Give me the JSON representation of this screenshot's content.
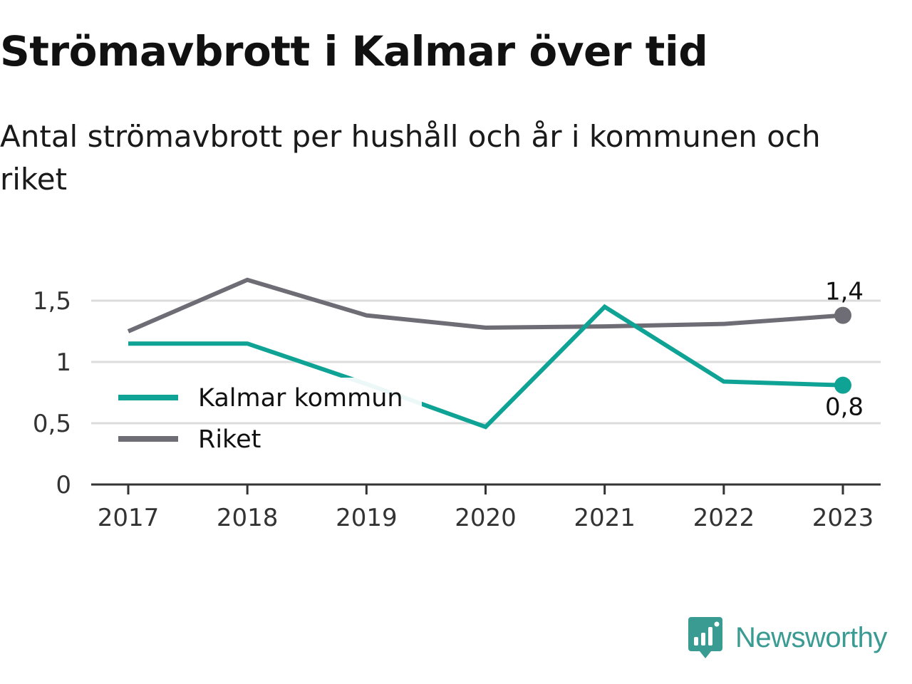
{
  "header": {
    "title": "Strömavbrott i Kalmar över tid",
    "subtitle": "Antal strömavbrott per hushåll och år i kommunen och riket"
  },
  "brand": {
    "name": "Newsworthy",
    "icon": "newsworthy-logo-icon",
    "color": "#3a9b93"
  },
  "chart_data": {
    "type": "line",
    "title": "Strömavbrott i Kalmar över tid",
    "subtitle": "Antal strömavbrott per hushåll och år i kommunen och riket",
    "xlabel": "",
    "ylabel": "",
    "categories": [
      "2017",
      "2018",
      "2019",
      "2020",
      "2021",
      "2022",
      "2023"
    ],
    "ylim": [
      0,
      1.75
    ],
    "yticks": [
      0,
      0.5,
      1,
      1.5
    ],
    "ytick_labels": [
      "0",
      "0,5",
      "1",
      "1,5"
    ],
    "grid": true,
    "legend": "left",
    "series": [
      {
        "name": "Kalmar kommun",
        "color": "#0fa396",
        "values": [
          1.15,
          1.15,
          0.82,
          0.47,
          1.45,
          0.84,
          0.81
        ],
        "end_label": "0,8"
      },
      {
        "name": "Riket",
        "color": "#6e6d75",
        "values": [
          1.25,
          1.67,
          1.38,
          1.28,
          1.29,
          1.31,
          1.38
        ],
        "end_label": "1,4"
      }
    ]
  }
}
